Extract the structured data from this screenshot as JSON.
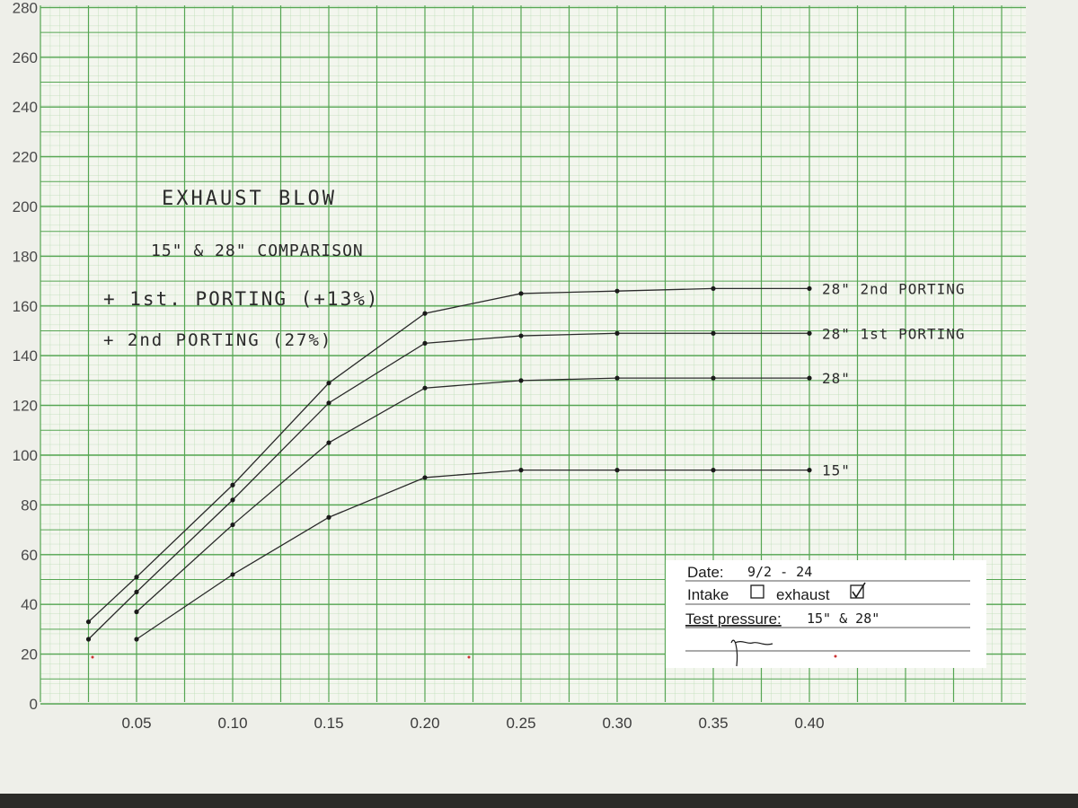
{
  "chart_data": {
    "type": "line",
    "title": "EXHAUST BLOW",
    "subtitle": "15\" & 28\" COMPARISON",
    "notes": [
      "+ 1st. PORTING (+13%)",
      "+ 2nd PORTING (27%)"
    ],
    "xlabel": "",
    "ylabel": "",
    "xlim": [
      0,
      0.5
    ],
    "ylim": [
      0,
      280
    ],
    "x_ticks": [
      "0.05",
      "0.10",
      "0.15",
      "0.20",
      "0.25",
      "0.30",
      "0.35",
      "0.40"
    ],
    "y_ticks": [
      "0",
      "20",
      "40",
      "60",
      "80",
      "100",
      "120",
      "140",
      "160",
      "180",
      "200",
      "220",
      "240",
      "260",
      "280"
    ],
    "grid": true,
    "series": [
      {
        "name": "28\" 2nd PORTING",
        "x": [
          0.025,
          0.05,
          0.1,
          0.15,
          0.2,
          0.25,
          0.3,
          0.35,
          0.4
        ],
        "y": [
          33,
          51,
          88,
          129,
          157,
          165,
          166,
          167,
          167
        ]
      },
      {
        "name": "28\" 1st PORTING",
        "x": [
          0.025,
          0.05,
          0.1,
          0.15,
          0.2,
          0.25,
          0.3,
          0.35,
          0.4
        ],
        "y": [
          26,
          45,
          82,
          121,
          145,
          148,
          149,
          149,
          149
        ]
      },
      {
        "name": "28\"",
        "x": [
          0.05,
          0.1,
          0.15,
          0.2,
          0.25,
          0.3,
          0.35,
          0.4
        ],
        "y": [
          37,
          72,
          105,
          127,
          130,
          131,
          131,
          131
        ]
      },
      {
        "name": "15\"",
        "x": [
          0.05,
          0.1,
          0.15,
          0.2,
          0.25,
          0.3,
          0.35,
          0.4
        ],
        "y": [
          26,
          52,
          75,
          91,
          94,
          94,
          94,
          94
        ]
      }
    ]
  },
  "form": {
    "date_label": "Date:",
    "date_value": "9/2 - 24",
    "intake_label": "Intake",
    "exhaust_label": "exhaust",
    "intake_checked": false,
    "exhaust_checked": true,
    "pressure_label": "Test pressure:",
    "pressure_value": "15\" & 28\""
  },
  "colors": {
    "paper": "#f3f6ee",
    "grid_major": "#55a552",
    "grid_minor": "#b9dcb3",
    "ink": "#2a2a2a",
    "card": "#ffffff"
  }
}
